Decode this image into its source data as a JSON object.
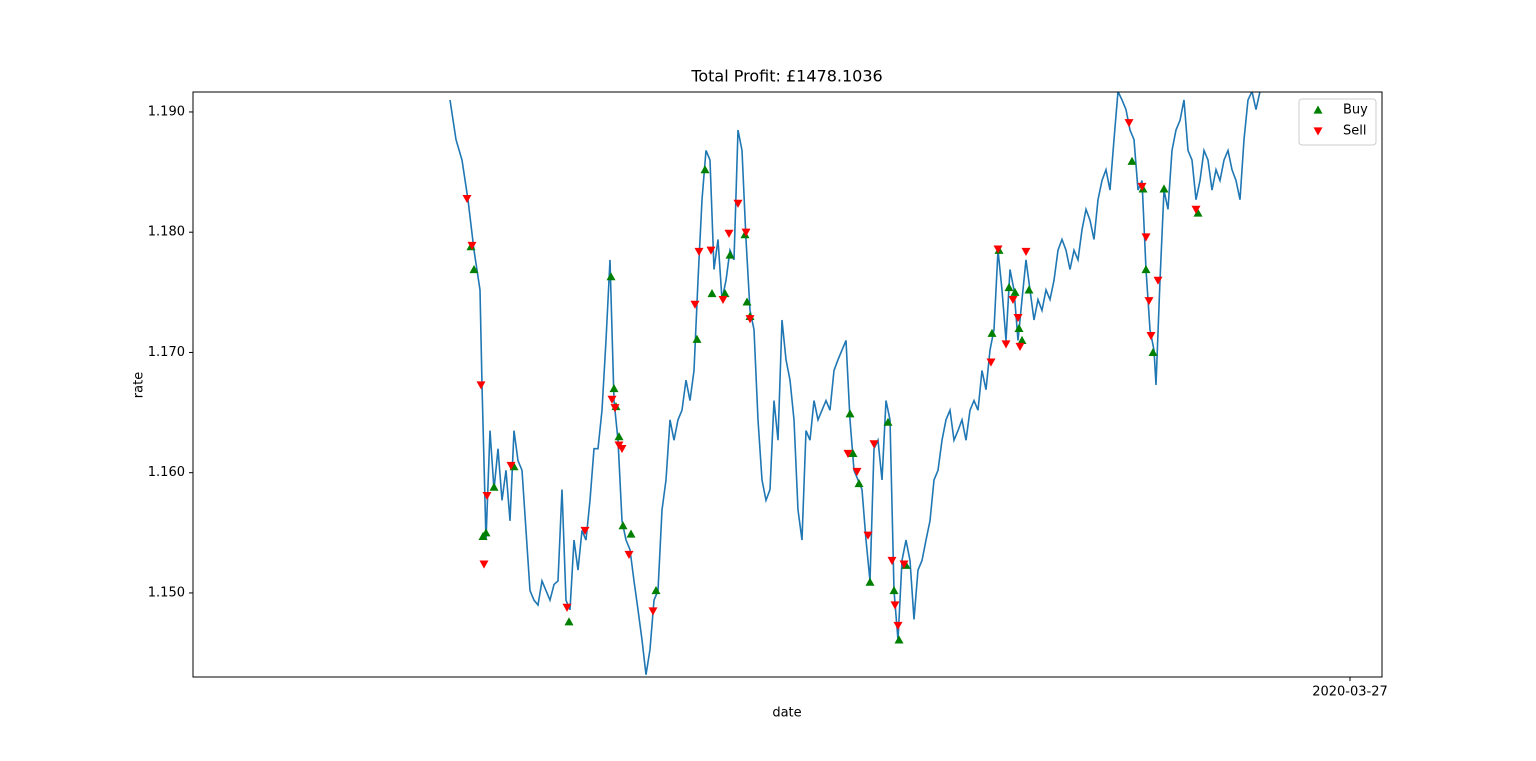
{
  "chart_data": {
    "type": "line",
    "title": "Total Profit: £1478.1036",
    "xlabel": "date",
    "ylabel": "rate",
    "xlim": [
      -64.25,
      233
    ],
    "xticks": [
      {
        "value": 225,
        "label": "2020-03-27"
      }
    ],
    "ylim": [
      1.14301,
      1.19166
    ],
    "yticks": [
      {
        "value": 1.15,
        "label": "1.150"
      },
      {
        "value": 1.16,
        "label": "1.160"
      },
      {
        "value": 1.17,
        "label": "1.170"
      },
      {
        "value": 1.18,
        "label": "1.180"
      },
      {
        "value": 1.19,
        "label": "1.190"
      }
    ],
    "legend": "upper right",
    "line": {
      "color": "#1f77b4",
      "x": [
        0,
        1.5,
        3,
        4.5,
        6,
        7.5,
        8,
        9,
        10,
        11,
        12,
        13,
        14,
        15,
        16,
        17,
        18,
        19,
        20,
        21,
        22,
        23,
        24,
        25,
        26,
        27,
        28,
        29,
        30,
        31,
        32,
        33,
        34,
        35,
        36,
        37,
        38,
        39,
        40,
        41,
        42,
        43,
        44,
        45,
        46,
        47,
        48,
        49,
        50,
        51,
        52,
        53,
        54,
        55,
        56,
        57,
        58,
        59,
        60,
        61,
        62,
        63,
        64,
        65,
        66,
        67,
        68,
        69,
        70,
        71,
        72,
        73,
        74,
        75,
        76,
        77,
        78,
        79,
        80,
        81,
        82,
        83,
        84,
        85,
        86,
        87,
        88,
        89,
        90,
        91,
        92,
        93,
        94,
        95,
        96,
        97,
        98,
        99,
        100,
        101,
        102,
        103,
        104,
        105,
        106,
        107,
        108,
        109,
        110,
        111,
        112,
        113,
        114,
        115,
        116,
        117,
        118,
        119,
        120,
        121,
        122,
        123,
        124,
        125,
        126,
        127,
        128,
        129,
        130,
        131,
        132,
        133,
        134,
        135,
        136,
        137,
        138,
        139,
        140,
        141,
        142,
        143,
        144,
        145,
        146,
        147,
        148,
        149,
        150,
        151,
        152,
        153,
        154,
        155,
        156,
        157,
        158,
        159,
        160,
        161,
        162,
        163,
        164,
        165,
        166,
        167,
        168,
        169,
        170,
        171,
        172,
        173,
        174,
        175,
        176,
        176.5,
        177.5,
        178.5,
        179.5,
        180.5,
        181.5,
        182.5,
        183.5,
        184.5,
        185.5,
        186.5,
        187.5,
        188.5,
        189.5,
        190.5,
        191.5,
        192.5,
        193.5,
        194.5,
        195.5,
        196.5,
        197.5,
        198.5,
        199.5,
        200.5,
        201.5,
        202.5
      ],
      "values": [
        1.191,
        1.1877,
        1.186,
        1.1827,
        1.1785,
        1.1752,
        1.1673,
        1.1544,
        1.1635,
        1.1586,
        1.162,
        1.1577,
        1.1602,
        1.156,
        1.1635,
        1.161,
        1.1602,
        1.1552,
        1.1502,
        1.1494,
        1.149,
        1.151,
        1.1502,
        1.1494,
        1.1507,
        1.151,
        1.1586,
        1.1494,
        1.1486,
        1.1544,
        1.1519,
        1.1552,
        1.1544,
        1.1577,
        1.162,
        1.162,
        1.1652,
        1.171,
        1.1777,
        1.166,
        1.1627,
        1.156,
        1.1544,
        1.1536,
        1.151,
        1.1486,
        1.1461,
        1.1432,
        1.1453,
        1.1494,
        1.1502,
        1.1569,
        1.1594,
        1.1644,
        1.1627,
        1.1644,
        1.1652,
        1.1677,
        1.166,
        1.1685,
        1.176,
        1.1827,
        1.1868,
        1.186,
        1.1769,
        1.1794,
        1.1744,
        1.176,
        1.1785,
        1.1777,
        1.1885,
        1.1868,
        1.1794,
        1.1735,
        1.1719,
        1.1644,
        1.1594,
        1.1577,
        1.1586,
        1.166,
        1.1627,
        1.1727,
        1.1694,
        1.1677,
        1.1644,
        1.1569,
        1.1544,
        1.1635,
        1.1627,
        1.166,
        1.1644,
        1.1652,
        1.166,
        1.1652,
        1.1685,
        1.1694,
        1.1702,
        1.171,
        1.1644,
        1.1602,
        1.1594,
        1.1586,
        1.1544,
        1.151,
        1.162,
        1.1627,
        1.1594,
        1.166,
        1.1644,
        1.1502,
        1.1461,
        1.1527,
        1.1544,
        1.1527,
        1.1478,
        1.1519,
        1.1527,
        1.1544,
        1.156,
        1.1594,
        1.1602,
        1.1627,
        1.1644,
        1.1652,
        1.1627,
        1.1635,
        1.1644,
        1.1627,
        1.1652,
        1.166,
        1.1652,
        1.1685,
        1.1669,
        1.1702,
        1.1719,
        1.1785,
        1.1752,
        1.171,
        1.1769,
        1.1752,
        1.171,
        1.1744,
        1.1777,
        1.1752,
        1.1727,
        1.1744,
        1.1735,
        1.1752,
        1.1744,
        1.176,
        1.1785,
        1.1794,
        1.1785,
        1.1769,
        1.1785,
        1.1777,
        1.1802,
        1.1819,
        1.181,
        1.1794,
        1.1827,
        1.1843,
        1.1852,
        1.1835,
        1.1877,
        1.1917,
        1.191,
        1.1902,
        1.1885,
        1.1877,
        1.1835,
        1.1843,
        1.1769,
        1.1719,
        1.1702,
        1.1673,
        1.176,
        1.1835,
        1.1819,
        1.1868,
        1.1885,
        1.1893,
        1.191,
        1.1868,
        1.186,
        1.1827,
        1.1843,
        1.1868,
        1.186,
        1.1835,
        1.1852,
        1.1843,
        1.186,
        1.1868,
        1.1852,
        1.1843,
        1.1827,
        1.1877,
        1.191,
        1.1917,
        1.1902,
        1.1917
      ]
    },
    "series": [
      {
        "name": "Buy",
        "marker": "up",
        "color": "green",
        "x": [
          5.25,
          6,
          8.25,
          9,
          11,
          16,
          29.75,
          40.25,
          41,
          41.5,
          42.25,
          43.25,
          45.25,
          51.5,
          61.75,
          63.75,
          65.5,
          68.75,
          70,
          73.75,
          74.25,
          75,
          100,
          100.75,
          102.25,
          105,
          109.5,
          111,
          112.25,
          114,
          135.5,
          137.25,
          139.75,
          141.25,
          142.25,
          143,
          144.75,
          170.5,
          173.25,
          174,
          175.75,
          178.5,
          187
        ],
        "values": [
          1.1788,
          1.1769,
          1.1547,
          1.155,
          1.1588,
          1.1605,
          1.1476,
          1.1763,
          1.167,
          1.1655,
          1.163,
          1.1556,
          1.1549,
          1.1502,
          1.1711,
          1.1852,
          1.1749,
          1.1749,
          1.1781,
          1.1798,
          1.1742,
          1.173,
          1.1649,
          1.1616,
          1.1591,
          1.1509,
          1.1642,
          1.1502,
          1.1461,
          1.1523,
          1.1716,
          1.1785,
          1.1754,
          1.175,
          1.172,
          1.171,
          1.1752,
          1.1859,
          1.1836,
          1.1769,
          1.17,
          1.1836,
          1.1816
        ]
      },
      {
        "name": "Sell",
        "marker": "down",
        "color": "red",
        "x": [
          4.25,
          5.5,
          7.75,
          8.5,
          9.25,
          15.25,
          29.25,
          33.75,
          40.5,
          41.25,
          42.25,
          43,
          44.75,
          50.75,
          61.25,
          62.25,
          65.25,
          68.25,
          69.75,
          72,
          74,
          75,
          99.5,
          101.75,
          104.5,
          106,
          110.5,
          111.25,
          112,
          113.5,
          135.25,
          137,
          139,
          140.75,
          142,
          142.5,
          144,
          169.75,
          173,
          174,
          174.75,
          175.25,
          177,
          186.5
        ],
        "values": [
          1.1828,
          1.1789,
          1.1673,
          1.1524,
          1.1581,
          1.1606,
          1.1488,
          1.1552,
          1.1661,
          1.1654,
          1.1623,
          1.162,
          1.1532,
          1.1485,
          1.174,
          1.1784,
          1.1785,
          1.1744,
          1.1799,
          1.1824,
          1.18,
          1.1728,
          1.1616,
          1.1601,
          1.1548,
          1.1624,
          1.1527,
          1.149,
          1.1473,
          1.1524,
          1.1692,
          1.1786,
          1.1707,
          1.1744,
          1.1729,
          1.1705,
          1.1784,
          1.1891,
          1.1838,
          1.1796,
          1.1743,
          1.1714,
          1.176,
          1.1819
        ]
      }
    ]
  }
}
